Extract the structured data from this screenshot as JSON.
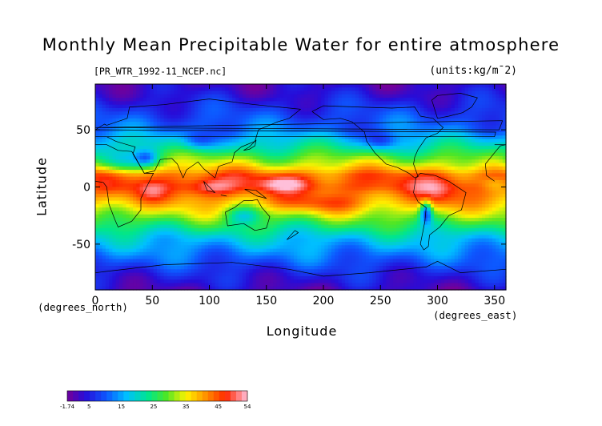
{
  "chart_data": {
    "type": "heatmap",
    "title": "Monthly Mean Precipitable Water for entire atmosphere",
    "file_label": "[PR_WTR_1992-11_NCEP.nc]",
    "units_label": "(units:kg/m¯2)",
    "xlabel": "Longitude",
    "ylabel": "Latitude",
    "x_unit_label": "(degrees_east)",
    "y_unit_label": "(degrees_north)",
    "xlim": [
      0,
      360
    ],
    "ylim": [
      -90,
      90
    ],
    "x_ticks": [
      0,
      50,
      100,
      150,
      200,
      250,
      300,
      350
    ],
    "y_ticks": [
      -50,
      0,
      50
    ],
    "colorbar": {
      "min": -1.74,
      "max": 54,
      "tick_labels": [
        "-1.74",
        "5",
        "15",
        "25",
        "35",
        "45",
        "54"
      ],
      "tick_values": [
        -1.74,
        5,
        15,
        25,
        35,
        45,
        54
      ]
    },
    "zonal_profile": {
      "lat": [
        -90,
        -75,
        -60,
        -45,
        -30,
        -15,
        0,
        10,
        20,
        35,
        50,
        65,
        80,
        90
      ],
      "value": [
        2,
        6,
        12,
        18,
        28,
        38,
        46,
        44,
        34,
        22,
        12,
        8,
        4,
        2
      ]
    },
    "anomalies": [
      {
        "lon": 100,
        "lat": 0,
        "dlon": 22,
        "dlat": 8,
        "amp": 8
      },
      {
        "lon": 165,
        "lat": 3,
        "dlon": 22,
        "dlat": 6,
        "amp": 8
      },
      {
        "lon": 300,
        "lat": -5,
        "dlon": 18,
        "dlat": 15,
        "amp": 6
      },
      {
        "lon": 290,
        "lat": -22,
        "dlon": 5,
        "dlat": 10,
        "amp": -22
      },
      {
        "lon": 20,
        "lat": 22,
        "dlon": 22,
        "dlat": 10,
        "amp": -12
      },
      {
        "lon": 45,
        "lat": 25,
        "dlon": 10,
        "dlat": 7,
        "amp": -12
      },
      {
        "lon": 90,
        "lat": 40,
        "dlon": 15,
        "dlat": 8,
        "amp": -10
      },
      {
        "lon": 250,
        "lat": 40,
        "dlon": 14,
        "dlat": 8,
        "amp": -10
      },
      {
        "lon": 130,
        "lat": -25,
        "dlon": 15,
        "dlat": 8,
        "amp": -10
      },
      {
        "lon": 200,
        "lat": -15,
        "dlon": 40,
        "dlat": 8,
        "amp": 6
      },
      {
        "lon": 350,
        "lat": 2,
        "dlon": 12,
        "dlat": 6,
        "amp": -6
      },
      {
        "lon": 50,
        "lat": -5,
        "dlon": 12,
        "dlat": 8,
        "amp": 4
      }
    ]
  }
}
